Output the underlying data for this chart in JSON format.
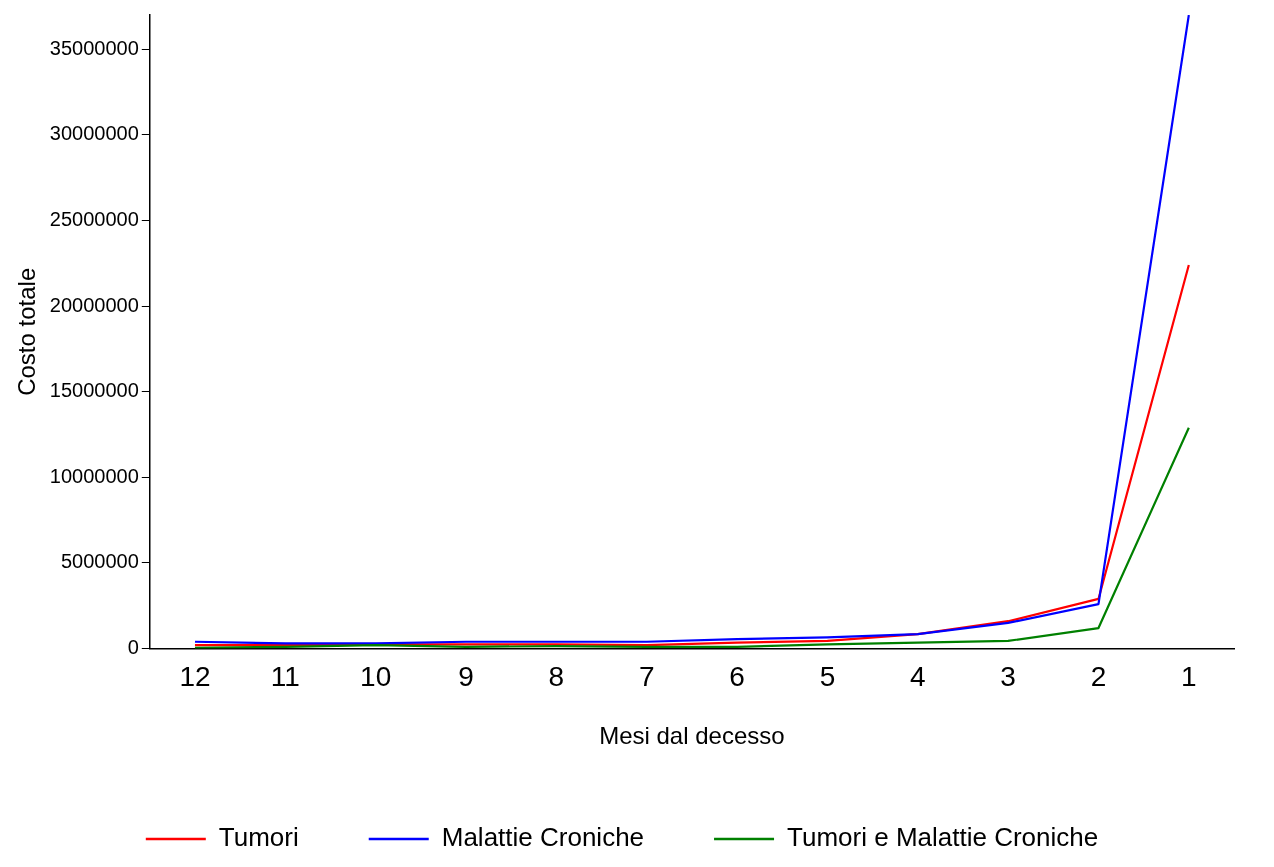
{
  "chart_data": {
    "type": "line",
    "xlabel": "Mesi dal decesso",
    "ylabel": "Costo totale",
    "categories": [
      "12",
      "11",
      "10",
      "9",
      "8",
      "7",
      "6",
      "5",
      "4",
      "3",
      "2",
      "1"
    ],
    "series": [
      {
        "name": "Tumori",
        "color": "#ff0000",
        "values": [
          200000,
          200000,
          250000,
          250000,
          250000,
          200000,
          350000,
          450000,
          850000,
          1600000,
          2900000,
          22400000
        ]
      },
      {
        "name": "Malattie Croniche",
        "color": "#0000ff",
        "values": [
          400000,
          300000,
          300000,
          400000,
          400000,
          400000,
          550000,
          650000,
          850000,
          1500000,
          2600000,
          37000000
        ]
      },
      {
        "name": "Tumori e Malattie Croniche",
        "color": "#008000",
        "values": [
          50000,
          100000,
          200000,
          100000,
          150000,
          100000,
          100000,
          250000,
          350000,
          450000,
          1200000,
          12900000
        ]
      }
    ],
    "ylim": [
      0,
      37000000
    ],
    "yticks": [
      0,
      5000000,
      10000000,
      15000000,
      20000000,
      25000000,
      30000000,
      35000000
    ],
    "grid": false,
    "legend": "bottom",
    "marker": "none",
    "line_style": "solid"
  }
}
